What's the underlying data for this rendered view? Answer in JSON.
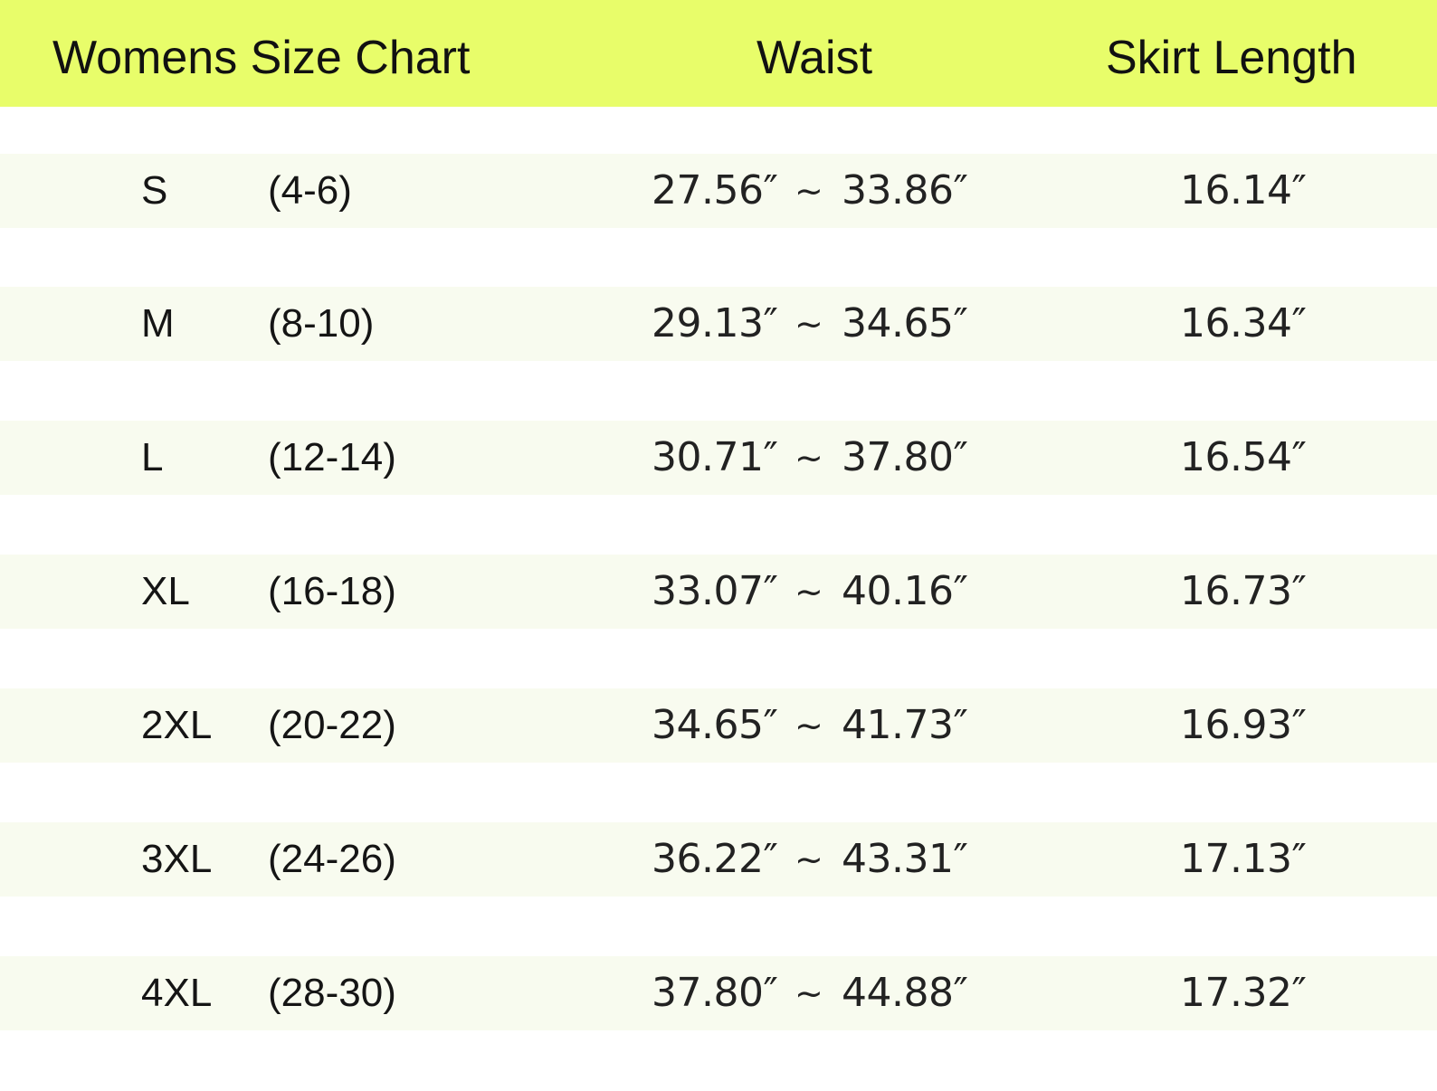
{
  "header": {
    "title": "Womens Size Chart",
    "waist": "Waist",
    "skirt_length": "Skirt Length",
    "background_color": "#e8fd6a"
  },
  "separator": "~",
  "rows": [
    {
      "size": "S",
      "range": "(4-6)",
      "waist_min": "27.56″",
      "waist_max": "33.86″",
      "skirt_length": "16.14″"
    },
    {
      "size": "M",
      "range": "(8-10)",
      "waist_min": "29.13″",
      "waist_max": "34.65″",
      "skirt_length": "16.34″"
    },
    {
      "size": "L",
      "range": "(12-14)",
      "waist_min": "30.71″",
      "waist_max": "37.80″",
      "skirt_length": "16.54″"
    },
    {
      "size": "XL",
      "range": "(16-18)",
      "waist_min": "33.07″",
      "waist_max": "40.16″",
      "skirt_length": "16.73″"
    },
    {
      "size": "2XL",
      "range": "(20-22)",
      "waist_min": "34.65″",
      "waist_max": "41.73″",
      "skirt_length": "16.93″"
    },
    {
      "size": "3XL",
      "range": "(24-26)",
      "waist_min": "36.22″",
      "waist_max": "43.31″",
      "skirt_length": "17.13″"
    },
    {
      "size": "4XL",
      "range": "(28-30)",
      "waist_min": "37.80″",
      "waist_max": "44.88″",
      "skirt_length": "17.32″"
    }
  ],
  "colors": {
    "row_stripe": "#f8fbef",
    "text": "#111111"
  }
}
